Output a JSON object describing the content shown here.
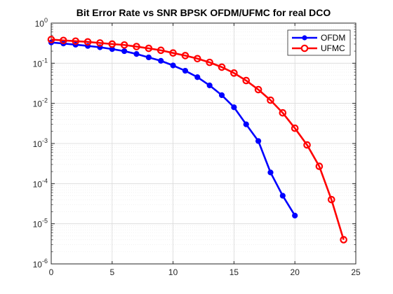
{
  "chart_data": {
    "type": "line",
    "title": "Bit Error Rate vs SNR BPSK OFDM/UFMC for real DCO",
    "xlabel": "",
    "ylabel": "",
    "yscale": "log",
    "xlim": [
      0,
      25
    ],
    "ylim_exp": [
      -6,
      0
    ],
    "x_ticks": [
      0,
      5,
      10,
      15,
      20,
      25
    ],
    "y_tick_exponents": [
      -6,
      -5,
      -4,
      -3,
      -2,
      -1,
      0
    ],
    "y_tick_base": "10",
    "grid": true,
    "legend_position": "top-right",
    "series": [
      {
        "name": "OFDM",
        "color": "#0000ff",
        "marker": "filled-circle",
        "x": [
          0,
          1,
          2,
          3,
          4,
          5,
          6,
          7,
          8,
          9,
          10,
          11,
          12,
          13,
          14,
          15,
          16,
          17,
          18,
          19,
          20
        ],
        "y": [
          0.33,
          0.31,
          0.29,
          0.27,
          0.25,
          0.225,
          0.2,
          0.17,
          0.14,
          0.115,
          0.088,
          0.065,
          0.045,
          0.028,
          0.016,
          0.008,
          0.003,
          0.00115,
          0.00019,
          5e-05,
          1.6e-05
        ]
      },
      {
        "name": "UFMC",
        "color": "#ff0000",
        "marker": "open-circle",
        "x": [
          0,
          1,
          2,
          3,
          4,
          5,
          6,
          7,
          8,
          9,
          10,
          11,
          12,
          13,
          14,
          15,
          16,
          17,
          18,
          19,
          20,
          21,
          22,
          23,
          24
        ],
        "y": [
          0.39,
          0.37,
          0.355,
          0.34,
          0.32,
          0.3,
          0.285,
          0.26,
          0.235,
          0.21,
          0.18,
          0.155,
          0.13,
          0.105,
          0.08,
          0.057,
          0.037,
          0.022,
          0.012,
          0.0058,
          0.0024,
          0.00092,
          0.00027,
          4e-05,
          4e-06
        ]
      }
    ]
  }
}
